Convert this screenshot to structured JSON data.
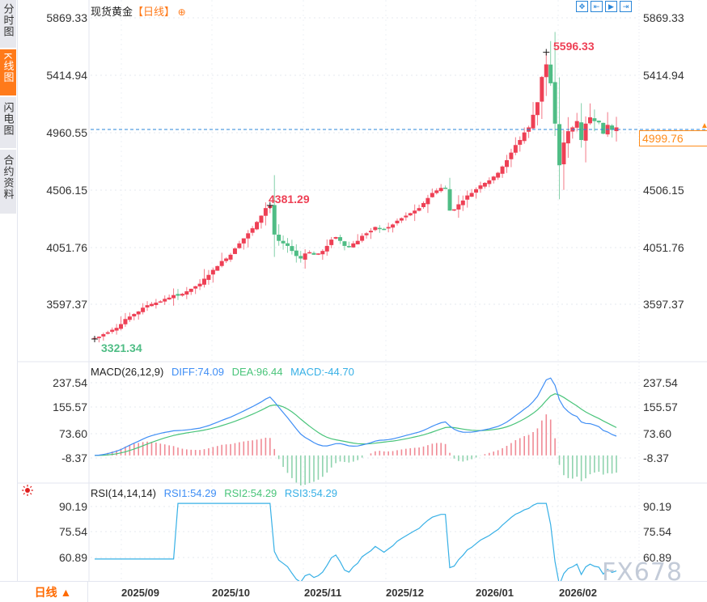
{
  "sidebar": {
    "tabs": [
      {
        "label": "分时图",
        "active": false
      },
      {
        "label": "K线图",
        "active": true
      },
      {
        "label": "闪电图",
        "active": false
      },
      {
        "label": "合约资料",
        "active": false
      }
    ]
  },
  "header": {
    "instrument": "现货黄金",
    "period_label": "【日线】",
    "add_icon": "⊕",
    "tools": [
      {
        "name": "crosshair-tool",
        "glyph": "✥"
      },
      {
        "name": "zoom-range-tool",
        "glyph": "⇤"
      },
      {
        "name": "play-tool",
        "glyph": "▶"
      },
      {
        "name": "go-latest-tool",
        "glyph": "⇥"
      }
    ]
  },
  "main_axis": {
    "ticks": [
      "5869.33",
      "5414.94",
      "4960.55",
      "4506.15",
      "4051.76",
      "3597.37"
    ],
    "current_price": "4999.76",
    "current_price_overlay": "4960.55"
  },
  "annotations": {
    "high_1": "4381.29",
    "high_2": "5596.33",
    "low": "3321.34"
  },
  "macd": {
    "title": "MACD(26,12,9)",
    "diff": "DIFF:74.09",
    "dea": "DEA:96.44",
    "macd": "MACD:-44.70",
    "ticks": [
      "237.54",
      "155.57",
      "73.60",
      "-8.37"
    ]
  },
  "rsi": {
    "title": "RSI(14,14,14)",
    "rsi1": "RSI1:54.29",
    "rsi2": "RSI2:54.29",
    "rsi3": "RSI3:54.29",
    "ticks": [
      "90.19",
      "75.54",
      "60.89"
    ]
  },
  "xaxis": {
    "period_button": "日线 ▲",
    "labels": [
      "2025/09",
      "2025/10",
      "2025/11",
      "2025/12",
      "2026/01",
      "2026/02"
    ]
  },
  "watermark": "FX678",
  "colors": {
    "up": "#ee4055",
    "down": "#4fbd85",
    "diff": "#3f8ef5",
    "dea": "#49c47a",
    "rsi": "#37b0e6",
    "accent": "#ff7a1a",
    "price_line": "#2a86d8"
  },
  "chart_data": [
    {
      "type": "candlestick",
      "title": "现货黄金【日线】",
      "xlabel": "",
      "ylabel": "",
      "x_ticks": [
        "2025/09",
        "2025/10",
        "2025/11",
        "2025/12",
        "2026/01",
        "2026/02"
      ],
      "y_ticks": [
        5869.33,
        5414.94,
        4960.55,
        4506.15,
        4051.76,
        3597.37
      ],
      "ylim": [
        3250,
        5900
      ],
      "grid": true,
      "annotations": [
        {
          "label": "3321.34",
          "type": "period low",
          "x": "2025/08 (late)"
        },
        {
          "label": "4381.29",
          "type": "local high",
          "x": "2025/10 (mid)"
        },
        {
          "label": "5596.33",
          "type": "period high",
          "x": "2026/01 (late)"
        }
      ],
      "current_price": 4999.76,
      "close_approx": [
        3330,
        3340,
        3360,
        3375,
        3395,
        3410,
        3440,
        3480,
        3500,
        3520,
        3540,
        3570,
        3590,
        3600,
        3610,
        3620,
        3640,
        3650,
        3670,
        3665,
        3680,
        3700,
        3720,
        3740,
        3760,
        3800,
        3830,
        3870,
        3900,
        3940,
        3960,
        3990,
        4040,
        4080,
        4120,
        4160,
        4200,
        4250,
        4300,
        4360,
        4381,
        4150,
        4100,
        4080,
        4060,
        4020,
        3980,
        3960,
        4000,
        4010,
        3990,
        4000,
        4020,
        4060,
        4110,
        4130,
        4100,
        4060,
        4050,
        4080,
        4100,
        4140,
        4160,
        4180,
        4210,
        4200,
        4190,
        4210,
        4230,
        4260,
        4280,
        4300,
        4320,
        4340,
        4360,
        4400,
        4440,
        4480,
        4500,
        4520,
        4520,
        4340,
        4350,
        4390,
        4420,
        4460,
        4480,
        4510,
        4540,
        4560,
        4580,
        4610,
        4640,
        4690,
        4740,
        4800,
        4860,
        4900,
        4960,
        5000,
        5100,
        5200,
        5400,
        5500,
        5350,
        5030,
        4700,
        4880,
        4970,
        5000,
        5050,
        4900,
        5030,
        5080,
        5050,
        5040,
        4950,
        5020,
        4980,
        5000
      ]
    },
    {
      "type": "line",
      "title": "MACD(26,12,9)",
      "legend": [
        "DIFF:74.09",
        "DEA:96.44",
        "MACD:-44.70"
      ],
      "y_ticks": [
        237.54,
        155.57,
        73.6,
        -8.37
      ],
      "series": [
        {
          "name": "DIFF",
          "last": 74.09
        },
        {
          "name": "DEA",
          "last": 96.44
        },
        {
          "name": "MACD",
          "last": -44.7
        }
      ]
    },
    {
      "type": "line",
      "title": "RSI(14,14,14)",
      "legend": [
        "RSI1:54.29",
        "RSI2:54.29",
        "RSI3:54.29"
      ],
      "y_ticks": [
        90.19,
        75.54,
        60.89
      ],
      "series": [
        {
          "name": "RSI1",
          "last": 54.29
        }
      ]
    }
  ]
}
